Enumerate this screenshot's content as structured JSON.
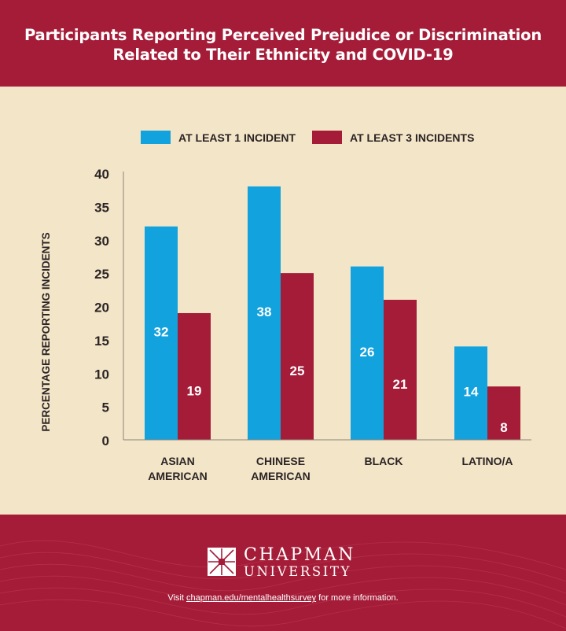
{
  "title": {
    "line1": "Participants Reporting Perceived Prejudice or Discrimination",
    "line2": "Related to Their Ethnicity and COVID-19"
  },
  "colors": {
    "background_header": "#a51c38",
    "panel": "#f3e5c8",
    "series1": "#12a2dd",
    "series2": "#a51c38",
    "text_dark": "#2b2424"
  },
  "chart_data": {
    "type": "bar",
    "ylabel": "PERCENTAGE REPORTING INCIDENTS",
    "ylim": [
      0,
      40
    ],
    "yticks": [
      0,
      5,
      10,
      15,
      20,
      25,
      30,
      35,
      40
    ],
    "legend_position": "top",
    "categories": [
      [
        "ASIAN",
        "AMERICAN"
      ],
      [
        "CHINESE",
        "AMERICAN"
      ],
      [
        "BLACK"
      ],
      [
        "LATINO/A"
      ]
    ],
    "series": [
      {
        "name": "AT LEAST 1 INCIDENT",
        "values": [
          32,
          38,
          26,
          14
        ],
        "labels": [
          "32",
          "38",
          "26",
          "14"
        ]
      },
      {
        "name": "AT LEAST 3 INCIDENTS",
        "values": [
          19,
          25,
          21,
          8
        ],
        "labels": [
          "19",
          "25",
          "21",
          "8"
        ]
      }
    ]
  },
  "footer": {
    "logo_name": "CHAPMAN",
    "logo_sub": "UNIVERSITY",
    "note_prefix": "Visit ",
    "note_link": "chapman.edu/mentalhealthsurvey",
    "note_suffix": " for more information."
  }
}
